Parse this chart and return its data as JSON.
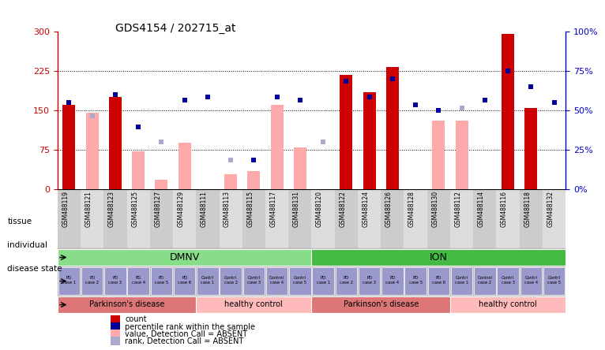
{
  "title": "GDS4154 / 202715_at",
  "samples": [
    "GSM488119",
    "GSM488121",
    "GSM488123",
    "GSM488125",
    "GSM488127",
    "GSM488129",
    "GSM488111",
    "GSM488113",
    "GSM488115",
    "GSM488117",
    "GSM488131",
    "GSM488120",
    "GSM488122",
    "GSM488124",
    "GSM488126",
    "GSM488128",
    "GSM488130",
    "GSM488112",
    "GSM488114",
    "GSM488116",
    "GSM488118",
    "GSM488132"
  ],
  "bar_values": [
    160,
    145,
    175,
    72,
    18,
    88,
    0,
    28,
    35,
    160,
    80,
    0,
    218,
    185,
    232,
    0,
    130,
    130,
    0,
    295,
    155,
    0
  ],
  "bar_absent": [
    false,
    true,
    false,
    true,
    true,
    true,
    true,
    true,
    true,
    true,
    true,
    true,
    false,
    false,
    false,
    true,
    true,
    true,
    true,
    false,
    false,
    true
  ],
  "rank_values": [
    165,
    140,
    180,
    118,
    90,
    170,
    175,
    55,
    55,
    175,
    170,
    90,
    205,
    175,
    210,
    160,
    150,
    155,
    170,
    225,
    195,
    165
  ],
  "rank_absent": [
    false,
    true,
    false,
    false,
    true,
    false,
    false,
    true,
    false,
    false,
    false,
    true,
    false,
    false,
    false,
    false,
    false,
    true,
    false,
    false,
    false,
    false
  ],
  "ylim_left": [
    0,
    300
  ],
  "ylim_right": [
    0,
    100
  ],
  "yticks_left": [
    0,
    75,
    150,
    225,
    300
  ],
  "ytick_labels_left": [
    "0",
    "75",
    "150",
    "225",
    "300"
  ],
  "yticks_right": [
    0,
    25,
    50,
    75,
    100
  ],
  "ytick_labels_right": [
    "0%",
    "25%",
    "50%",
    "75%",
    "100%"
  ],
  "hlines": [
    75,
    150,
    225
  ],
  "tissue_groups": [
    {
      "label": "DMNV",
      "start": 0,
      "end": 11,
      "color": "#88dd88"
    },
    {
      "label": "ION",
      "start": 11,
      "end": 22,
      "color": "#44bb44"
    }
  ],
  "individual_groups": [
    {
      "label": "PD\ncase 1",
      "start": 0,
      "end": 1
    },
    {
      "label": "PD\ncase 2",
      "start": 1,
      "end": 2
    },
    {
      "label": "PD\ncase 3",
      "start": 2,
      "end": 3
    },
    {
      "label": "PD\ncase 4",
      "start": 3,
      "end": 4
    },
    {
      "label": "PD\ncase 5",
      "start": 4,
      "end": 5
    },
    {
      "label": "PD\ncase 6",
      "start": 5,
      "end": 6
    },
    {
      "label": "Contrl\ncase 1",
      "start": 6,
      "end": 7
    },
    {
      "label": "Contrl\ncase 2",
      "start": 7,
      "end": 8
    },
    {
      "label": "Contrl\ncase 3",
      "start": 8,
      "end": 9
    },
    {
      "label": "Control\ncase 4",
      "start": 9,
      "end": 10
    },
    {
      "label": "Contrl\ncase 5",
      "start": 10,
      "end": 11
    },
    {
      "label": "PD\ncase 1",
      "start": 11,
      "end": 12
    },
    {
      "label": "PD\ncase 2",
      "start": 12,
      "end": 13
    },
    {
      "label": "PD\ncase 3",
      "start": 13,
      "end": 14
    },
    {
      "label": "PD\ncase 4",
      "start": 14,
      "end": 15
    },
    {
      "label": "PD\ncase 5",
      "start": 15,
      "end": 16
    },
    {
      "label": "PD\ncase 6",
      "start": 16,
      "end": 17
    },
    {
      "label": "Contrl\ncase 1",
      "start": 17,
      "end": 18
    },
    {
      "label": "Control\ncase 2",
      "start": 18,
      "end": 19
    },
    {
      "label": "Contrl\ncase 3",
      "start": 19,
      "end": 20
    },
    {
      "label": "Contrl\ncase 4",
      "start": 20,
      "end": 21
    },
    {
      "label": "Contrl\ncase 5",
      "start": 21,
      "end": 22
    }
  ],
  "indiv_color_pd": "#9999cc",
  "indiv_color_ctrl": "#9999cc",
  "disease_groups": [
    {
      "label": "Parkinson's disease",
      "start": 0,
      "end": 6,
      "color": "#dd7777"
    },
    {
      "label": "healthy control",
      "start": 6,
      "end": 11,
      "color": "#ffbbbb"
    },
    {
      "label": "Parkinson's disease",
      "start": 11,
      "end": 17,
      "color": "#dd7777"
    },
    {
      "label": "healthy control",
      "start": 17,
      "end": 22,
      "color": "#ffbbbb"
    }
  ],
  "legend_items": [
    {
      "label": "count",
      "color": "#cc0000"
    },
    {
      "label": "percentile rank within the sample",
      "color": "#000099"
    },
    {
      "label": "value, Detection Call = ABSENT",
      "color": "#ffaaaa"
    },
    {
      "label": "rank, Detection Call = ABSENT",
      "color": "#aaaacc"
    }
  ],
  "bar_color_present": "#cc0000",
  "bar_color_absent": "#ffaaaa",
  "rank_color_present": "#000099",
  "rank_color_absent": "#aaaacc",
  "bg_color": "#ffffff",
  "axis_color_left": "#cc0000",
  "axis_color_right": "#0000cc",
  "xtick_bg_even": "#cccccc",
  "xtick_bg_odd": "#dddddd"
}
